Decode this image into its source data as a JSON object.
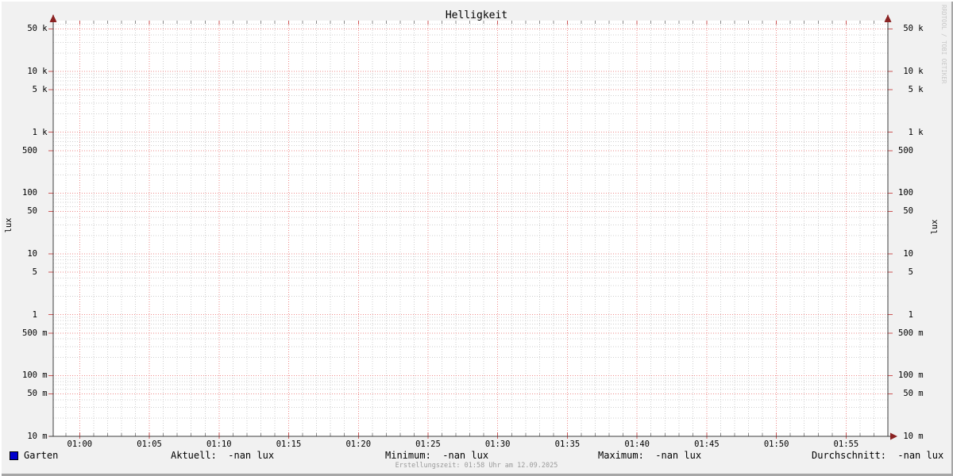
{
  "chart_data": {
    "type": "line",
    "title": "Helligkeit",
    "ylabel_left": "lux",
    "ylabel_right": "lux",
    "y_scale": "log",
    "ylim": [
      0.01,
      68470
    ],
    "x_start_min": 58.1,
    "x_end_min": 118.0,
    "x_minor_step_min": 1,
    "x_ticks": [
      {
        "t": 60,
        "label": "01:00"
      },
      {
        "t": 65,
        "label": "01:05"
      },
      {
        "t": 70,
        "label": "01:10"
      },
      {
        "t": 75,
        "label": "01:15"
      },
      {
        "t": 80,
        "label": "01:20"
      },
      {
        "t": 85,
        "label": "01:25"
      },
      {
        "t": 90,
        "label": "01:30"
      },
      {
        "t": 95,
        "label": "01:35"
      },
      {
        "t": 100,
        "label": "01:40"
      },
      {
        "t": 105,
        "label": "01:45"
      },
      {
        "t": 110,
        "label": "01:50"
      },
      {
        "t": 115,
        "label": "01:55"
      }
    ],
    "y_ticks": [
      {
        "v": 50000,
        "label": " 50 k"
      },
      {
        "v": 10000,
        "label": " 10 k"
      },
      {
        "v": 5000,
        "label": "  5 k"
      },
      {
        "v": 1000,
        "label": "  1 k"
      },
      {
        "v": 500,
        "label": "500  "
      },
      {
        "v": 100,
        "label": "100  "
      },
      {
        "v": 50,
        "label": " 50  "
      },
      {
        "v": 10,
        "label": " 10  "
      },
      {
        "v": 5,
        "label": "  5  "
      },
      {
        "v": 1,
        "label": "  1  "
      },
      {
        "v": 0.5,
        "label": "500 m"
      },
      {
        "v": 0.1,
        "label": "100 m"
      },
      {
        "v": 0.05,
        "label": " 50 m"
      },
      {
        "v": 0.01,
        "label": " 10 m"
      }
    ],
    "grid": {
      "canvas_color": "#ffffff",
      "minor_color": "#cfcfcf",
      "major_color": "#ee8a8a",
      "minor_tick_color": "#8c8c8c",
      "major_tick_color": "#cc5555",
      "axis_color": "#3d3d3d",
      "arrow_color": "#8b2323",
      "grid_on": true,
      "legend_position": "bottom"
    },
    "series": [
      {
        "name": "Garten",
        "color": "#0000cc",
        "values": []
      }
    ]
  },
  "legend": {
    "series_label": "Garten",
    "series_color": "#0000cc",
    "stats": [
      {
        "label": "Aktuell:",
        "value": "-nan lux",
        "text": "Aktuell:  -nan lux"
      },
      {
        "label": "Minimum:",
        "value": "-nan lux",
        "text": "Minimum:  -nan lux"
      },
      {
        "label": "Maximum:",
        "value": "-nan lux",
        "text": "Maximum:  -nan lux"
      },
      {
        "label": "Durchschnitt:",
        "value": "-nan lux",
        "text": "Durchschnitt:  -nan lux"
      }
    ]
  },
  "footer": {
    "creation_time": "Erstellungszeit: 01:58 Uhr am 12.09.2025"
  },
  "watermark": "RRDTOOL / TOBI OETIKER"
}
